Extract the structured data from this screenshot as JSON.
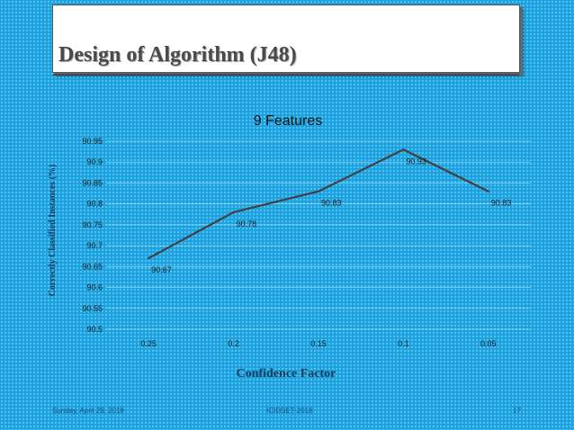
{
  "slide": {
    "title": "Design of Algorithm (J48)"
  },
  "chart_data": {
    "type": "line",
    "title": "9 Features",
    "xlabel": "Confidence Factor",
    "ylabel": "Correctly Classified Instances (%)",
    "categories": [
      "0.25",
      "0.2",
      "0.15",
      "0.1",
      "0.05"
    ],
    "series": [
      {
        "name": "Correctly Classified Instances",
        "values": [
          90.67,
          90.78,
          90.83,
          90.93,
          90.83
        ]
      }
    ],
    "data_labels": [
      "90.67",
      "90.78",
      "90.83",
      "90.93",
      "90.83"
    ],
    "yticks": [
      "90.5",
      "90.55",
      "90.6",
      "90.65",
      "90.7",
      "90.75",
      "90.8",
      "90.85",
      "90.9",
      "90.95"
    ],
    "ylim": [
      90.5,
      90.95
    ],
    "grid": true,
    "line_color": "#404040"
  },
  "footer": {
    "date": "Sunday, April 29, 2018",
    "event": "ICIDSET-2018",
    "page": "17"
  }
}
